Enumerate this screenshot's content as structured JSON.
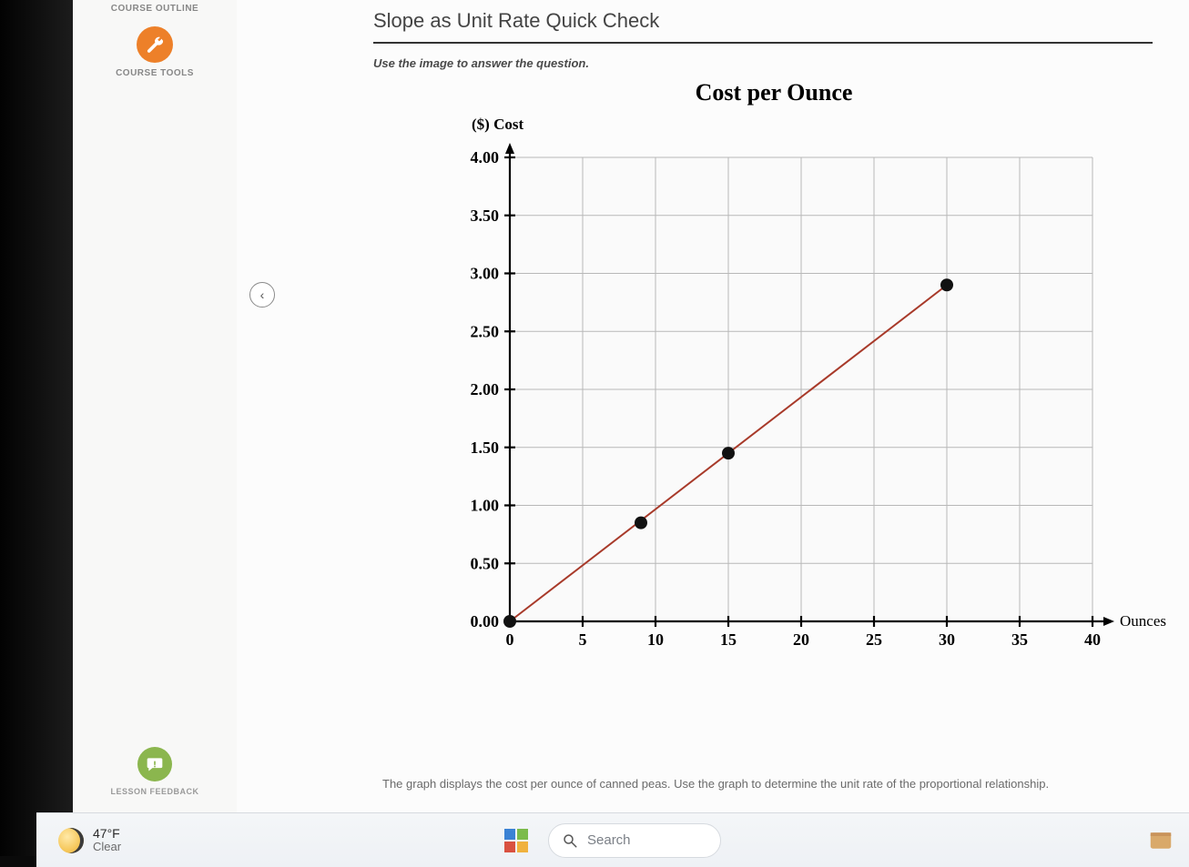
{
  "sidebar": {
    "outline_label": "COURSE OUTLINE",
    "tools_label": "COURSE TOOLS",
    "feedback_label": "LESSON FEEDBACK"
  },
  "page": {
    "title": "Slope as Unit Rate Quick Check",
    "instruction": "Use the image to answer the question.",
    "caption": "The graph displays the cost per ounce of canned peas. Use the graph to determine the unit rate of the proportional relationship."
  },
  "chart": {
    "type": "scatter-line",
    "title": "Cost per Ounce",
    "y_axis_label": "($) Cost",
    "x_axis_label": "Ounces",
    "xlim": [
      0,
      40
    ],
    "xtick_step": 5,
    "ylim": [
      0,
      4.0
    ],
    "ytick_step": 0.5,
    "y_tick_labels": [
      "0.00",
      "0.50",
      "1.00",
      "1.50",
      "2.00",
      "2.50",
      "3.00",
      "3.50",
      "4.00"
    ],
    "x_tick_labels": [
      "0",
      "5",
      "10",
      "15",
      "20",
      "25",
      "30",
      "35",
      "40"
    ],
    "points": [
      {
        "x": 0,
        "y": 0.0
      },
      {
        "x": 9,
        "y": 0.85
      },
      {
        "x": 15,
        "y": 1.45
      },
      {
        "x": 30,
        "y": 2.9
      }
    ],
    "line_color": "#a83a2a",
    "point_color": "#111111",
    "point_radius": 7,
    "axis_color": "#000000",
    "grid_color": "#b8b8b8",
    "background_color": "#fafafa",
    "axis_width": 2.2,
    "grid_width": 1,
    "tick_font_size": 18,
    "tick_font_family": "Times New Roman, serif",
    "tick_font_weight": "bold"
  },
  "taskbar": {
    "temperature": "47°F",
    "condition": "Clear",
    "search_placeholder": "Search"
  },
  "colors": {
    "accent_orange": "#ed8029",
    "accent_green": "#8bb64e",
    "page_bg": "#fcfcfc"
  }
}
